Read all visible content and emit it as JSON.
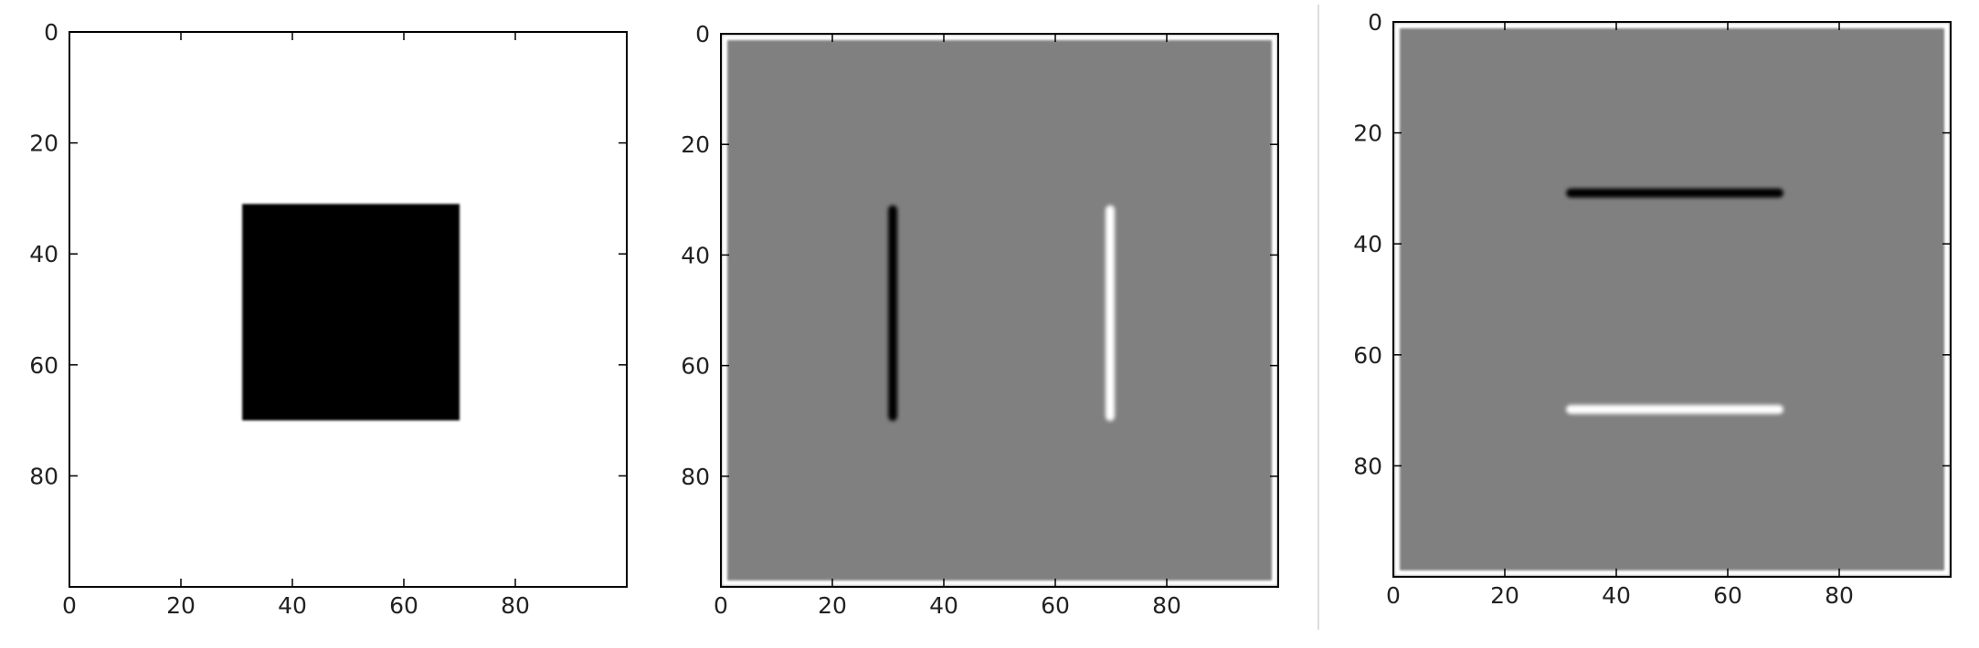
{
  "chart_data": [
    {
      "type": "heatmap",
      "description": "Input image: white field with a black square",
      "xlim": [
        0,
        100
      ],
      "ylim": [
        100,
        0
      ],
      "x_ticks": [
        0,
        20,
        40,
        60,
        80
      ],
      "y_ticks": [
        0,
        20,
        40,
        60,
        80
      ],
      "background": "white",
      "features": [
        {
          "shape": "rect",
          "x": [
            31,
            70
          ],
          "y": [
            31,
            70
          ],
          "tone": "black"
        }
      ]
    },
    {
      "type": "heatmap",
      "description": "Horizontal gradient (vertical edges)",
      "xlim": [
        0,
        100
      ],
      "ylim": [
        100,
        0
      ],
      "x_ticks": [
        0,
        20,
        40,
        60,
        80
      ],
      "y_ticks": [
        0,
        20,
        40,
        60,
        80
      ],
      "background": "gray",
      "features": [
        {
          "shape": "vline",
          "x": 31,
          "y": [
            31,
            70
          ],
          "tone": "black"
        },
        {
          "shape": "vline",
          "x": 70,
          "y": [
            31,
            70
          ],
          "tone": "white"
        }
      ]
    },
    {
      "type": "heatmap",
      "description": "Vertical gradient (horizontal edges)",
      "xlim": [
        0,
        100
      ],
      "ylim": [
        100,
        0
      ],
      "x_ticks": [
        0,
        20,
        40,
        60,
        80
      ],
      "y_ticks": [
        0,
        20,
        40,
        60,
        80
      ],
      "background": "gray",
      "features": [
        {
          "shape": "hline",
          "y": 31,
          "x": [
            31,
            70
          ],
          "tone": "black"
        },
        {
          "shape": "hline",
          "y": 70,
          "x": [
            31,
            70
          ],
          "tone": "white"
        }
      ]
    }
  ],
  "colors": {
    "white": "#ffffff",
    "gray": "#808080",
    "black": "#000000",
    "axis": "#000000",
    "divider": "#dddddd"
  }
}
